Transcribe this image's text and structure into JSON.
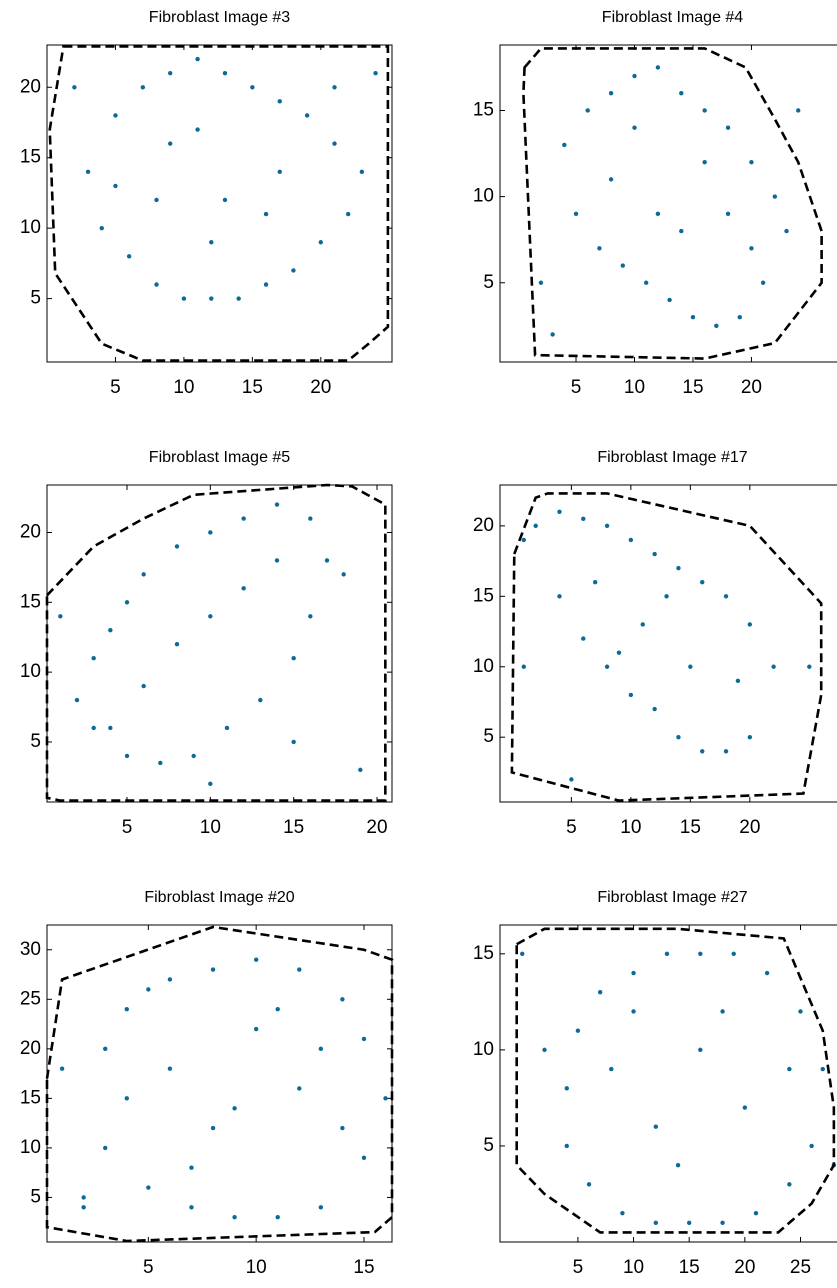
{
  "chart_data": [
    {
      "type": "scatter",
      "title": "Fibroblast Image #3",
      "xlim": [
        0,
        25.2
      ],
      "ylim": [
        0.5,
        23
      ],
      "xticks": [
        5,
        10,
        15,
        20
      ],
      "yticks": [
        5,
        10,
        15,
        20
      ],
      "points": {
        "color": "#0b6a96",
        "x": [
          3,
          5,
          7,
          9,
          11,
          13,
          15,
          17,
          19,
          21,
          23,
          4,
          6,
          8,
          10,
          12,
          14,
          16,
          18,
          20,
          22,
          5,
          9,
          13,
          17,
          21,
          8,
          12,
          16,
          11,
          2,
          24
        ],
        "y": [
          14,
          18,
          20,
          21,
          22,
          21,
          20,
          19,
          18,
          16,
          14,
          10,
          8,
          6,
          5,
          5,
          5,
          6,
          7,
          9,
          11,
          13,
          16,
          12,
          14,
          20,
          12,
          9,
          11,
          17,
          20,
          21
        ]
      },
      "hull": {
        "color": "#000000",
        "x": [
          1.2,
          24.9,
          24.9,
          23.5,
          22,
          7,
          4,
          0.6,
          0.2
        ],
        "y": [
          22.9,
          22.9,
          3,
          1.8,
          0.6,
          0.6,
          1.8,
          6.8,
          17
        ]
      }
    },
    {
      "type": "scatter",
      "title": "Fibroblast Image #4",
      "xlim": [
        -1.5,
        28
      ],
      "ylim": [
        0.4,
        18.8
      ],
      "xticks": [
        5,
        10,
        15,
        20
      ],
      "yticks": [
        5,
        10,
        15
      ],
      "points": {
        "color": "#0b6a96",
        "x": [
          4,
          6,
          8,
          10,
          12,
          14,
          16,
          18,
          20,
          22,
          23,
          5,
          7,
          9,
          11,
          13,
          15,
          17,
          19,
          21,
          8,
          12,
          16,
          20,
          10,
          14,
          18,
          2,
          3,
          24
        ],
        "y": [
          13,
          15,
          16,
          17,
          17.5,
          16,
          15,
          14,
          12,
          10,
          8,
          9,
          7,
          6,
          5,
          4,
          3,
          2.5,
          3,
          5,
          11,
          9,
          12,
          7,
          14,
          8,
          9,
          5,
          2,
          15
        ]
      },
      "hull": {
        "color": "#000000",
        "x": [
          0.6,
          2,
          16,
          19.5,
          22,
          24,
          26,
          26,
          22,
          16,
          1.5,
          0.5
        ],
        "y": [
          17.5,
          18.6,
          18.6,
          17.5,
          14.5,
          12,
          8,
          5,
          1.5,
          0.6,
          0.8,
          16
        ]
      }
    },
    {
      "type": "scatter",
      "title": "Fibroblast Image #5",
      "xlim": [
        0.2,
        20.9
      ],
      "ylim": [
        0.7,
        23.4
      ],
      "xticks": [
        5,
        10,
        15,
        20
      ],
      "yticks": [
        5,
        10,
        15,
        20
      ],
      "points": {
        "color": "#0b6a96",
        "x": [
          2,
          3,
          4,
          5,
          6,
          8,
          10,
          12,
          14,
          16,
          17,
          5,
          7,
          9,
          11,
          13,
          15,
          16,
          4,
          6,
          8,
          10,
          12,
          14,
          3,
          18,
          15,
          10,
          19,
          1
        ],
        "y": [
          8,
          11,
          13,
          15,
          17,
          19,
          20,
          21,
          22,
          21,
          18,
          4,
          3.5,
          4,
          6,
          8,
          11,
          14,
          6,
          9,
          12,
          14,
          16,
          18,
          6,
          17,
          5,
          2,
          3,
          14
        ]
      },
      "hull": {
        "color": "#000000",
        "x": [
          0.2,
          3,
          6,
          9,
          17,
          18.5,
          20.5,
          20.5,
          19.5,
          1,
          0.2
        ],
        "y": [
          15.5,
          19,
          21,
          22.7,
          23.4,
          23.3,
          22,
          0.8,
          0.8,
          0.8,
          1
        ]
      }
    },
    {
      "type": "scatter",
      "title": "Fibroblast Image #17",
      "xlim": [
        -1,
        28
      ],
      "ylim": [
        0.4,
        22.9
      ],
      "xticks": [
        5,
        10,
        15,
        20
      ],
      "yticks": [
        5,
        10,
        15,
        20
      ],
      "points": {
        "color": "#0b6a96",
        "x": [
          1,
          2,
          4,
          6,
          8,
          10,
          12,
          14,
          16,
          18,
          20,
          22,
          4,
          6,
          8,
          10,
          12,
          14,
          16,
          18,
          20,
          7,
          11,
          15,
          19,
          9,
          13,
          1,
          25,
          5
        ],
        "y": [
          19,
          20,
          21,
          20.5,
          20,
          19,
          18,
          17,
          16,
          15,
          13,
          10,
          15,
          12,
          10,
          8,
          7,
          5,
          4,
          4,
          5,
          16,
          13,
          10,
          9,
          11,
          15,
          10,
          10,
          2
        ]
      },
      "hull": {
        "color": "#000000",
        "x": [
          0.2,
          2,
          3,
          8,
          20,
          26,
          26,
          24.5,
          9,
          0
        ],
        "y": [
          18,
          22,
          22.3,
          22.3,
          20,
          14.5,
          8,
          1,
          0.5,
          2.5
        ]
      }
    },
    {
      "type": "scatter",
      "title": "Fibroblast Image #20",
      "xlim": [
        0.3,
        16.3
      ],
      "ylim": [
        0.5,
        32.5
      ],
      "xticks": [
        5,
        10,
        15
      ],
      "yticks": [
        5,
        10,
        15,
        20,
        25,
        30
      ],
      "points": {
        "color": "#0b6a96",
        "x": [
          3,
          4,
          6,
          8,
          10,
          12,
          14,
          15,
          3,
          5,
          7,
          9,
          11,
          13,
          15,
          4,
          6,
          8,
          10,
          12,
          14,
          5,
          9,
          13,
          7,
          11,
          1,
          16,
          2,
          2
        ],
        "y": [
          20,
          24,
          27,
          28,
          29,
          28,
          25,
          21,
          10,
          6,
          4,
          3,
          3,
          4,
          9,
          15,
          18,
          12,
          22,
          16,
          12,
          26,
          14,
          20,
          8,
          24,
          18,
          15,
          5,
          4
        ]
      },
      "hull": {
        "color": "#000000",
        "x": [
          0.3,
          1,
          8,
          15,
          16.3,
          16.3,
          15.5,
          4,
          0.3
        ],
        "y": [
          17,
          27,
          32.3,
          30,
          29,
          3,
          1.5,
          0.6,
          2
        ]
      }
    },
    {
      "type": "scatter",
      "title": "Fibroblast Image #27",
      "xlim": [
        -2,
        29
      ],
      "ylim": [
        0,
        16.5
      ],
      "xticks": [
        5,
        10,
        15,
        20,
        25
      ],
      "yticks": [
        5,
        10,
        15
      ],
      "points": {
        "color": "#0b6a96",
        "x": [
          4,
          5,
          7,
          10,
          13,
          16,
          19,
          22,
          25,
          27,
          4,
          6,
          9,
          12,
          15,
          18,
          21,
          24,
          26,
          8,
          12,
          16,
          20,
          24,
          10,
          18,
          14,
          0,
          2,
          28
        ],
        "y": [
          8,
          11,
          13,
          14,
          15,
          15,
          15,
          14,
          12,
          9,
          5,
          3,
          1.5,
          1,
          1,
          1,
          1.5,
          3,
          5,
          9,
          6,
          10,
          7,
          9,
          12,
          12,
          4,
          15,
          10,
          4
        ]
      },
      "hull": {
        "color": "#000000",
        "x": [
          -0.5,
          2,
          14,
          23.5,
          27,
          28,
          28,
          26,
          23,
          7,
          2,
          -0.5
        ],
        "y": [
          15.5,
          16.3,
          16.3,
          15.8,
          11,
          7,
          4,
          2,
          0.5,
          0.5,
          2.5,
          4
        ]
      }
    }
  ]
}
